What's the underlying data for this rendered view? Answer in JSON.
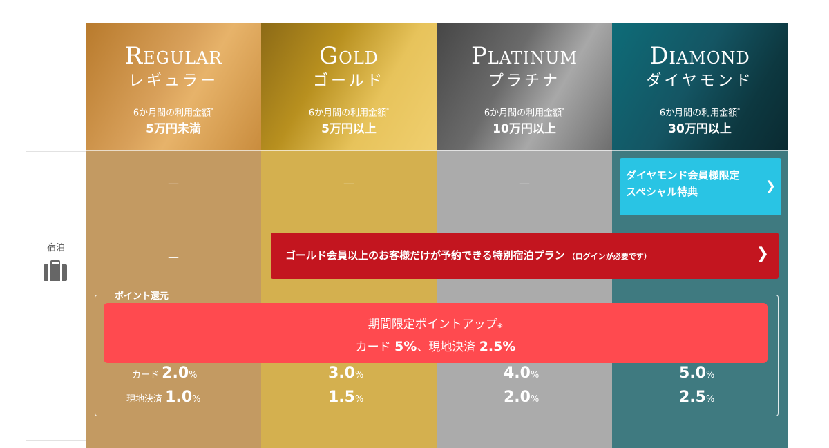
{
  "category": {
    "label": "宿泊",
    "icon": "suitcase-icon"
  },
  "tiers": [
    {
      "en": "Regular",
      "ja": "レギュラー",
      "condition": "6か月間の利用金額",
      "amount": "5万円未満",
      "row1": "—",
      "row2": "—"
    },
    {
      "en": "Gold",
      "ja": "ゴールド",
      "condition": "6か月間の利用金額",
      "amount": "5万円以上",
      "row1": "—"
    },
    {
      "en": "Platinum",
      "ja": "プラチナ",
      "condition": "6か月間の利用金額",
      "amount": "10万円以上",
      "row1": "—"
    },
    {
      "en": "Diamond",
      "ja": "ダイヤモンド",
      "condition": "6か月間の利用金額",
      "amount": "30万円以上"
    }
  ],
  "condition_mark": "*",
  "diamond_special": {
    "line1": "ダイヤモンド会員様限定",
    "line2": "スペシャル特典",
    "chevron": "chevron-right-icon"
  },
  "plan_banner": {
    "text": "ゴールド会員以上のお客様だけが予約できる特別宿泊プラン",
    "note": "（ログインが必要です）",
    "chevron": "chevron-right-icon"
  },
  "points": {
    "title": "ポイント還元",
    "promo": {
      "line1": "期間限定ポイントアップ",
      "mark": "※",
      "card_label": "カード",
      "card_rate": "5%",
      "sep": "、",
      "local_label": "現地決済",
      "local_rate": "2.5%"
    },
    "card_label": "カード",
    "local_label": "現地決済",
    "unit": "%",
    "card_rates": [
      "2.0",
      "3.0",
      "4.0",
      "5.0"
    ],
    "local_rates": [
      "1.0",
      "1.5",
      "2.0",
      "2.5"
    ]
  },
  "colors": {
    "regular_body": "#c39a62",
    "gold_body": "#d4b04f",
    "platinum_body": "#ababab",
    "diamond_body": "#3f7a80",
    "special_button": "#29c4e4",
    "plan_banner": "#c3151f",
    "promo": "#ff4a4f"
  }
}
